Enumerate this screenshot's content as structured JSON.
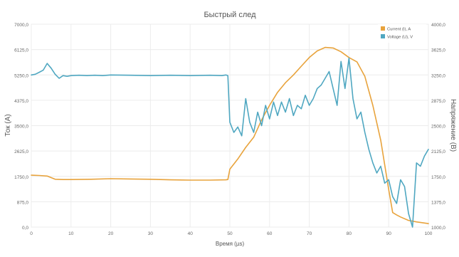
{
  "chart_data": {
    "type": "line",
    "title": "Быстрый след",
    "xlabel": "Время (µs)",
    "ylabel_left": "Ток (А)",
    "ylabel_right": "Напряжение (В)",
    "x_ticks": [
      0,
      10,
      20,
      30,
      40,
      50,
      60,
      70,
      80,
      90,
      100
    ],
    "x_tick_labels": [
      "0",
      "10",
      "20",
      "30",
      "40",
      "50",
      "60",
      "70",
      "80",
      "90",
      "100"
    ],
    "xlim": [
      0,
      100
    ],
    "y_left_ticks": [
      0,
      875,
      1750,
      2625,
      3500,
      4375,
      5250,
      6125,
      7000
    ],
    "y_left_tick_labels": [
      "0,0",
      "875,0",
      "1750,0",
      "2625,0",
      "3500,0",
      "4375,0",
      "5250,0",
      "6125,0",
      "7000,0"
    ],
    "y_left_lim": [
      0,
      7000
    ],
    "y_right_ticks": [
      1000,
      1375,
      1750,
      2125,
      2500,
      2875,
      3250,
      3625,
      4000
    ],
    "y_right_tick_labels": [
      "1000,0",
      "1375,0",
      "1750,0",
      "2125,0",
      "2500,0",
      "2875,0",
      "3250,0",
      "3625,0",
      "4000,0"
    ],
    "y_right_lim": [
      1000,
      4000
    ],
    "grid": true,
    "legend_position": "top-right",
    "series": [
      {
        "name": "Current (I), A",
        "axis": "left",
        "color": "#e8a33c",
        "x": [
          0,
          2,
          4,
          6,
          8,
          10,
          15,
          20,
          25,
          30,
          35,
          40,
          45,
          49,
          49.5,
          50,
          52,
          54,
          56,
          58,
          60,
          62,
          64,
          66,
          68,
          70,
          72,
          74,
          76,
          78,
          80,
          82,
          84,
          86,
          88,
          90,
          91,
          92,
          93,
          95,
          97,
          100
        ],
        "y": [
          1790,
          1780,
          1760,
          1650,
          1640,
          1640,
          1650,
          1670,
          1660,
          1650,
          1630,
          1620,
          1620,
          1630,
          1640,
          2000,
          2350,
          2750,
          3100,
          3700,
          4200,
          4650,
          4980,
          5250,
          5550,
          5850,
          6080,
          6200,
          6180,
          6050,
          5850,
          5700,
          5200,
          4200,
          3000,
          1300,
          500,
          420,
          350,
          230,
          180,
          120
        ]
      },
      {
        "name": "Voltage (U), V",
        "axis": "right",
        "color": "#4fa7c1",
        "x": [
          0,
          1,
          2,
          3,
          4,
          5,
          6,
          7,
          8,
          9,
          10,
          12,
          14,
          16,
          18,
          20,
          25,
          30,
          35,
          40,
          45,
          48,
          49,
          49.5,
          50,
          51,
          52,
          53,
          54,
          55,
          56,
          57,
          58,
          59,
          60,
          61,
          62,
          63,
          64,
          65,
          66,
          67,
          68,
          69,
          70,
          71,
          72,
          73,
          74,
          75,
          76,
          77,
          78,
          79,
          80,
          81,
          82,
          83,
          84,
          85,
          86,
          87,
          88,
          89,
          90,
          91,
          92,
          93,
          94,
          95,
          96,
          97,
          98,
          99,
          100
        ],
        "y": [
          3250,
          3260,
          3290,
          3320,
          3420,
          3350,
          3260,
          3200,
          3240,
          3230,
          3240,
          3245,
          3240,
          3245,
          3240,
          3250,
          3245,
          3240,
          3245,
          3240,
          3245,
          3240,
          3250,
          3240,
          2550,
          2400,
          2480,
          2350,
          2900,
          2550,
          2400,
          2700,
          2500,
          2800,
          2600,
          2850,
          2650,
          2850,
          2700,
          2900,
          2650,
          2800,
          2750,
          2950,
          2800,
          2900,
          3050,
          3100,
          3200,
          3300,
          3050,
          2800,
          3450,
          3050,
          3500,
          2900,
          2600,
          2700,
          2400,
          2150,
          1950,
          1800,
          1900,
          1650,
          1700,
          1450,
          1350,
          1700,
          1600,
          1200,
          1000,
          1950,
          1900,
          2050,
          2150
        ]
      }
    ]
  }
}
